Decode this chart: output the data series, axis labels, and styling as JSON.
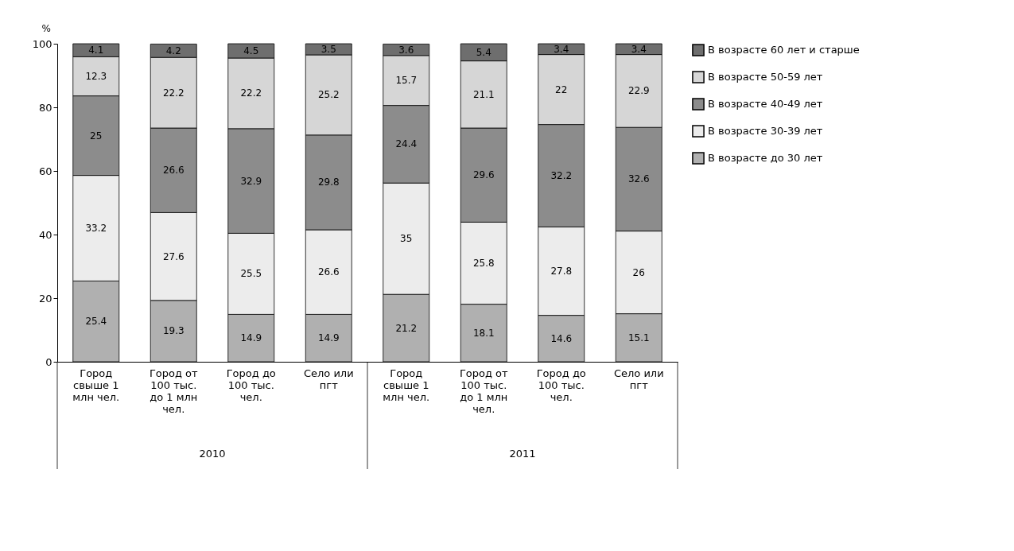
{
  "chart_data": {
    "type": "bar",
    "stacked": true,
    "ylabel": "%",
    "categories": [
      "Город свыше 1 млн чел.",
      "Город от 100 тыс. до 1 млн чел.",
      "Город до 100 тыс. чел.",
      "Село или пгт",
      "Город свыше 1 млн чел.",
      "Город от 100 тыс. до 1 млн чел.",
      "Город до 100 тыс. чел.",
      "Село или пгт"
    ],
    "series": [
      {
        "name": "В возрасте до 30 лет",
        "color": "#b0b0b0",
        "values": [
          25.4,
          19.3,
          14.9,
          14.9,
          21.2,
          18.1,
          14.6,
          15.1
        ]
      },
      {
        "name": "В возрасте 30-39 лет",
        "color": "#ececec",
        "values": [
          33.2,
          27.6,
          25.5,
          26.6,
          35,
          25.8,
          27.8,
          26
        ]
      },
      {
        "name": "В возрасте 40-49 лет",
        "color": "#8c8c8c",
        "values": [
          25,
          26.6,
          32.9,
          29.8,
          24.4,
          29.6,
          32.2,
          32.6
        ]
      },
      {
        "name": "В возрасте 50-59 лет",
        "color": "#d6d6d6",
        "values": [
          12.3,
          22.2,
          22.2,
          25.2,
          15.7,
          21.1,
          22,
          22.9
        ]
      },
      {
        "name": "В возрасте 60 лет и старше",
        "color": "#6e6e6e",
        "values": [
          4.1,
          4.2,
          4.5,
          3.5,
          3.6,
          5.4,
          3.4,
          3.4
        ]
      }
    ],
    "annotations": [
      "2010",
      "2011"
    ],
    "ylim": [
      0,
      100
    ],
    "yticks": [
      0,
      20,
      40,
      60,
      80,
      100
    ],
    "data_labels": true,
    "grid": false,
    "legend": "right"
  }
}
